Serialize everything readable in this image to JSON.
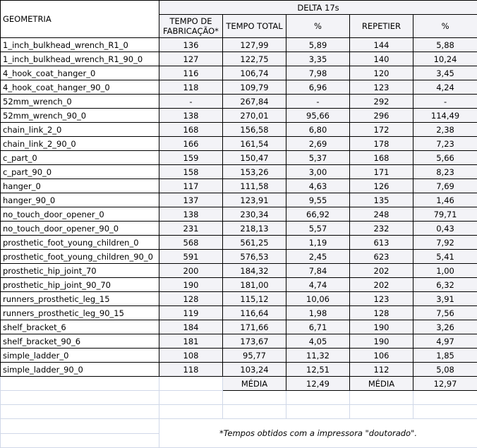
{
  "header": {
    "geometry": "GEOMETRIA",
    "group": "DELTA 17s",
    "columns": [
      "TEMPO DE FABRICAÇÃO*",
      "TEMPO TOTAL",
      "%",
      "REPETIER",
      "%"
    ]
  },
  "rows": [
    [
      "1_inch_bulkhead_wrench_R1_0",
      "136",
      "127,99",
      "5,89",
      "144",
      "5,88"
    ],
    [
      "1_inch_bulkhead_wrench_R1_90_0",
      "127",
      "122,75",
      "3,35",
      "140",
      "10,24"
    ],
    [
      "4_hook_coat_hanger_0",
      "116",
      "106,74",
      "7,98",
      "120",
      "3,45"
    ],
    [
      "4_hook_coat_hanger_90_0",
      "118",
      "109,79",
      "6,96",
      "123",
      "4,24"
    ],
    [
      "52mm_wrench_0",
      "-",
      "267,84",
      "-",
      "292",
      "-"
    ],
    [
      "52mm_wrench_90_0",
      "138",
      "270,01",
      "95,66",
      "296",
      "114,49"
    ],
    [
      "chain_link_2_0",
      "168",
      "156,58",
      "6,80",
      "172",
      "2,38"
    ],
    [
      "chain_link_2_90_0",
      "166",
      "161,54",
      "2,69",
      "178",
      "7,23"
    ],
    [
      "c_part_0",
      "159",
      "150,47",
      "5,37",
      "168",
      "5,66"
    ],
    [
      "c_part_90_0",
      "158",
      "153,26",
      "3,00",
      "171",
      "8,23"
    ],
    [
      "hanger_0",
      "117",
      "111,58",
      "4,63",
      "126",
      "7,69"
    ],
    [
      "hanger_90_0",
      "137",
      "123,91",
      "9,55",
      "135",
      "1,46"
    ],
    [
      "no_touch_door_opener_0",
      "138",
      "230,34",
      "66,92",
      "248",
      "79,71"
    ],
    [
      "no_touch_door_opener_90_0",
      "231",
      "218,13",
      "5,57",
      "232",
      "0,43"
    ],
    [
      "prosthetic_foot_young_children_0",
      "568",
      "561,25",
      "1,19",
      "613",
      "7,92"
    ],
    [
      "prosthetic_foot_young_children_90_0",
      "591",
      "576,53",
      "2,45",
      "623",
      "5,41"
    ],
    [
      "prosthetic_hip_joint_70",
      "200",
      "184,32",
      "7,84",
      "202",
      "1,00"
    ],
    [
      "prosthetic_hip_joint_90_70",
      "190",
      "181,00",
      "4,74",
      "202",
      "6,32"
    ],
    [
      "runners_prosthetic_leg_15",
      "128",
      "115,12",
      "10,06",
      "123",
      "3,91"
    ],
    [
      "runners_prosthetic_leg_90_15",
      "119",
      "116,64",
      "1,98",
      "128",
      "7,56"
    ],
    [
      "shelf_bracket_6",
      "184",
      "171,66",
      "6,71",
      "190",
      "3,26"
    ],
    [
      "shelf_bracket_90_6",
      "181",
      "173,67",
      "4,05",
      "190",
      "4,97"
    ],
    [
      "simple_ladder_0",
      "108",
      "95,77",
      "11,32",
      "106",
      "1,85"
    ],
    [
      "simple_ladder_90_0",
      "118",
      "103,24",
      "12,51",
      "112",
      "5,08"
    ]
  ],
  "summary": {
    "label1": "MÉDIA",
    "value1": "12,49",
    "label2": "MÉDIA",
    "value2": "12,97"
  },
  "footnote": "*Tempos obtidos com a impressora \"doutorado\"."
}
